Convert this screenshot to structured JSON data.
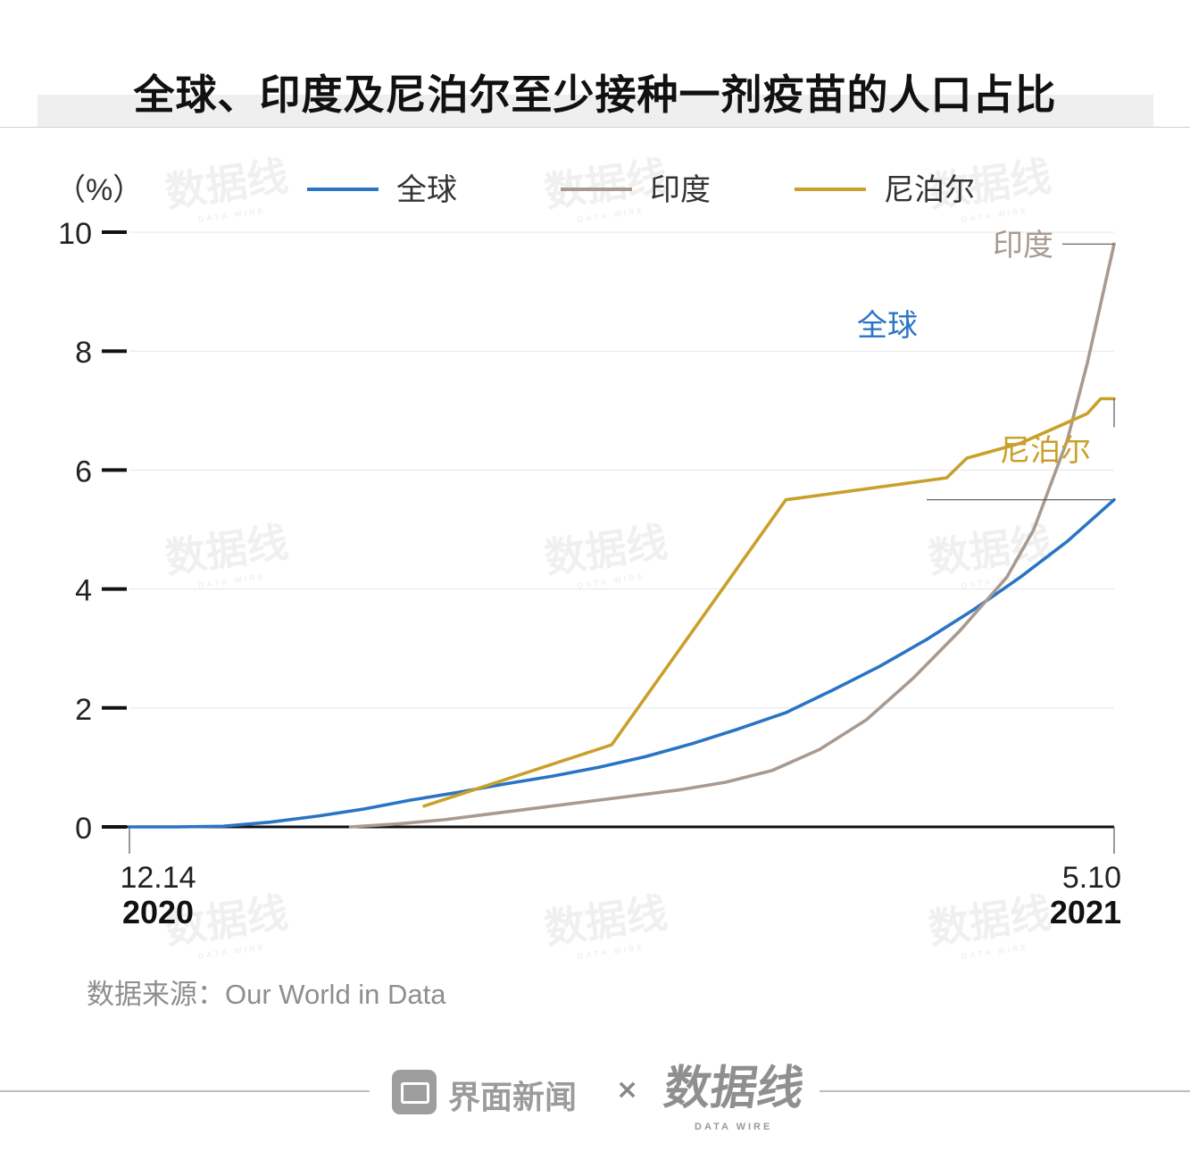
{
  "title": "全球、印度及尼泊尔至少接种一剂疫苗的人口占比",
  "unit_label": "（%）",
  "source": "数据来源：Our World in Data",
  "footer": {
    "brand": "界面新闻",
    "times": "×",
    "logo": "数据线",
    "logo_sub": "DATA WIRE"
  },
  "watermark": {
    "text": "数据线",
    "sub": "DATA WIRE"
  },
  "colors": {
    "global": "#2a74c4",
    "india": "#a89a90",
    "nepal": "#c9a02a",
    "axis": "#111111",
    "grid": "#e6e6e6"
  },
  "chart_data": {
    "type": "line",
    "title": "全球、印度及尼泊尔至少接种一剂疫苗的人口占比",
    "ylabel": "（%）",
    "xlabel": "",
    "ylim": [
      0,
      10
    ],
    "xlim": [
      "2020-12-14",
      "2021-05-10"
    ],
    "y_ticks": [
      "0",
      "2",
      "4",
      "6",
      "8",
      "10"
    ],
    "x_ticks": [
      {
        "date": "2020-12-14",
        "label": "12.14",
        "year": "2020"
      },
      {
        "date": "2021-05-10",
        "label": "5.10",
        "year": "2021"
      }
    ],
    "grid": true,
    "legend": "top",
    "series": [
      {
        "name": "全球",
        "key": "global",
        "end_label": "全球",
        "points": [
          [
            "2020-12-14",
            0
          ],
          [
            "2020-12-21",
            0
          ],
          [
            "2020-12-28",
            0.01
          ],
          [
            "2021-01-04",
            0.08
          ],
          [
            "2021-01-11",
            0.18
          ],
          [
            "2021-01-18",
            0.3
          ],
          [
            "2021-01-25",
            0.45
          ],
          [
            "2021-02-01",
            0.58
          ],
          [
            "2021-02-08",
            0.72
          ],
          [
            "2021-02-15",
            0.85
          ],
          [
            "2021-02-22",
            1.0
          ],
          [
            "2021-03-01",
            1.18
          ],
          [
            "2021-03-08",
            1.4
          ],
          [
            "2021-03-15",
            1.65
          ],
          [
            "2021-03-22",
            1.92
          ],
          [
            "2021-03-29",
            2.3
          ],
          [
            "2021-04-05",
            2.7
          ],
          [
            "2021-04-12",
            3.15
          ],
          [
            "2021-04-19",
            3.65
          ],
          [
            "2021-04-26",
            4.2
          ],
          [
            "2021-05-03",
            4.8
          ],
          [
            "2021-05-10",
            5.5
          ]
        ]
      },
      {
        "name": "印度",
        "key": "india",
        "end_label": "印度",
        "points": [
          [
            "2021-01-16",
            0
          ],
          [
            "2021-01-23",
            0.05
          ],
          [
            "2021-01-30",
            0.12
          ],
          [
            "2021-02-06",
            0.22
          ],
          [
            "2021-02-13",
            0.32
          ],
          [
            "2021-02-20",
            0.42
          ],
          [
            "2021-02-27",
            0.52
          ],
          [
            "2021-03-06",
            0.62
          ],
          [
            "2021-03-13",
            0.75
          ],
          [
            "2021-03-20",
            0.95
          ],
          [
            "2021-03-27",
            1.3
          ],
          [
            "2021-04-03",
            1.8
          ],
          [
            "2021-04-10",
            2.5
          ],
          [
            "2021-04-17",
            3.3
          ],
          [
            "2021-04-24",
            4.2
          ],
          [
            "2021-04-28",
            5.0
          ],
          [
            "2021-05-03",
            6.5
          ],
          [
            "2021-05-06",
            7.8
          ],
          [
            "2021-05-10",
            9.8
          ]
        ]
      },
      {
        "name": "尼泊尔",
        "key": "nepal",
        "end_label": "尼泊尔",
        "points": [
          [
            "2021-01-27",
            0.35
          ],
          [
            "2021-02-24",
            1.38
          ],
          [
            "2021-03-22",
            5.5
          ],
          [
            "2021-04-15",
            5.87
          ],
          [
            "2021-04-18",
            6.2
          ],
          [
            "2021-04-26",
            6.45
          ],
          [
            "2021-05-01",
            6.7
          ],
          [
            "2021-05-06",
            6.95
          ],
          [
            "2021-05-08",
            7.2
          ],
          [
            "2021-05-10",
            7.2
          ]
        ]
      }
    ]
  }
}
